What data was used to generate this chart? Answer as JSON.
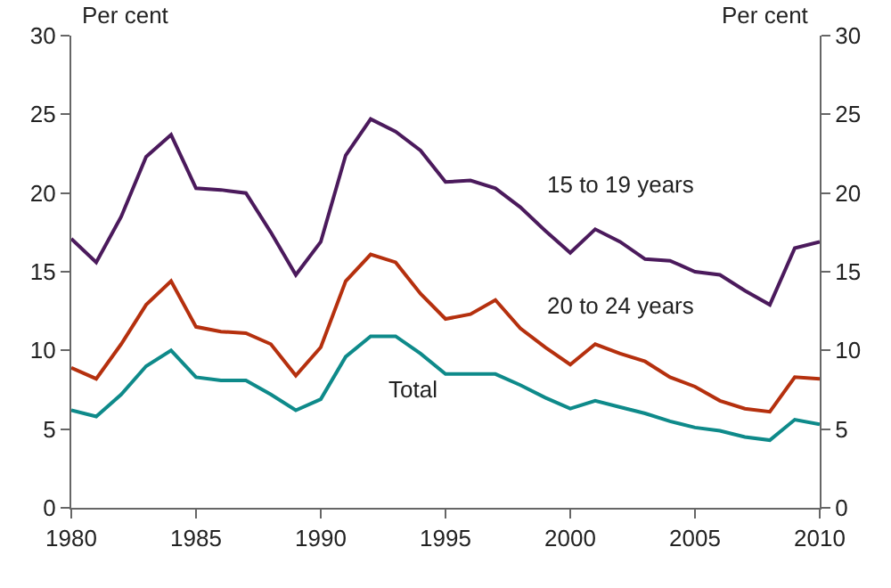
{
  "chart_data": {
    "type": "line",
    "ylabel": "Per cent",
    "y2label": "Per cent",
    "x": [
      1980,
      1981,
      1982,
      1983,
      1984,
      1985,
      1986,
      1987,
      1988,
      1989,
      1990,
      1991,
      1992,
      1993,
      1994,
      1995,
      1996,
      1997,
      1998,
      1999,
      2000,
      2001,
      2002,
      2003,
      2004,
      2005,
      2006,
      2007,
      2008,
      2009,
      2010
    ],
    "series": [
      {
        "name": "15 to 19 years",
        "color": "#4b1a5c",
        "values": [
          17.1,
          15.6,
          18.5,
          22.3,
          23.7,
          20.3,
          20.2,
          20.0,
          17.5,
          14.8,
          16.9,
          22.4,
          24.7,
          23.9,
          22.7,
          20.7,
          20.8,
          20.3,
          19.1,
          17.6,
          16.2,
          17.7,
          16.9,
          15.8,
          15.7,
          15.0,
          14.8,
          13.8,
          12.9,
          16.5,
          16.9
        ]
      },
      {
        "name": "20 to 24 years",
        "color": "#b5300e",
        "values": [
          8.9,
          8.2,
          10.4,
          12.9,
          14.4,
          11.5,
          11.2,
          11.1,
          10.4,
          8.4,
          10.2,
          14.4,
          16.1,
          15.6,
          13.6,
          12.0,
          12.3,
          13.2,
          11.4,
          10.2,
          9.1,
          10.4,
          9.8,
          9.3,
          8.3,
          7.7,
          6.8,
          6.3,
          6.1,
          8.3,
          8.2
        ]
      },
      {
        "name": "Total",
        "color": "#0e8a8a",
        "values": [
          6.2,
          5.8,
          7.2,
          9.0,
          10.0,
          8.3,
          8.1,
          8.1,
          7.2,
          6.2,
          6.9,
          9.6,
          10.9,
          10.9,
          9.8,
          8.5,
          8.5,
          8.5,
          7.8,
          7.0,
          6.3,
          6.8,
          6.4,
          6.0,
          5.5,
          5.1,
          4.9,
          4.5,
          4.3,
          5.6,
          5.3
        ]
      }
    ],
    "xlim": [
      1980,
      2010
    ],
    "xticks": [
      1980,
      1985,
      1990,
      1995,
      2000,
      2005,
      2010
    ],
    "ylim": [
      0,
      30
    ],
    "yticks": [
      0,
      5,
      10,
      15,
      20,
      25,
      30
    ],
    "y2lim": [
      0,
      30
    ],
    "y2ticks": [
      0,
      5,
      10,
      15,
      20,
      25,
      30
    ],
    "grid": false,
    "legend": false,
    "marker": "none",
    "line_style": "solid"
  }
}
